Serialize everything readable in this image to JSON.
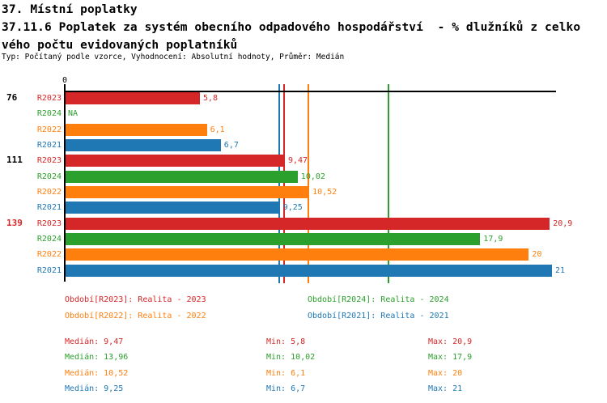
{
  "header": {
    "title_line1": "37. Místní poplatky",
    "title_line2": "37.11.6 Poplatek za systém obecního odpadového hospodářství  - % dlužníků z celko",
    "title_line3": "vého počtu evidovaných poplatníků",
    "meta_line": "Typ: Počítaný podle vzorce, Vyhodnocení: Absolutní hodnoty, Průměr: Medián"
  },
  "chart_data": {
    "type": "bar",
    "orientation": "horizontal",
    "title": "",
    "xlabel": "",
    "ylabel": "",
    "xlim": [
      0,
      21.2
    ],
    "grid": false,
    "axis_tick_labels": [
      "0"
    ],
    "series": [
      {
        "id": "R2023",
        "name": "Realita - 2023",
        "color": "#d62728"
      },
      {
        "id": "R2024",
        "name": "Realita - 2024",
        "color": "#2ca02c"
      },
      {
        "id": "R2022",
        "name": "Realita - 2022",
        "color": "#ff7f0e"
      },
      {
        "id": "R2021",
        "name": "Realita - 2021",
        "color": "#1f77b4"
      }
    ],
    "groups": [
      {
        "label": "76",
        "label_color": "#000000",
        "rows": [
          {
            "series": "R2023",
            "value": 5.8,
            "display": "5,8"
          },
          {
            "series": "R2024",
            "value": null,
            "display": "NA"
          },
          {
            "series": "R2022",
            "value": 6.1,
            "display": "6,1"
          },
          {
            "series": "R2021",
            "value": 6.7,
            "display": "6,7"
          }
        ]
      },
      {
        "label": "111",
        "label_color": "#000000",
        "rows": [
          {
            "series": "R2023",
            "value": 9.47,
            "display": "9,47"
          },
          {
            "series": "R2024",
            "value": 10.02,
            "display": "10,02"
          },
          {
            "series": "R2022",
            "value": 10.52,
            "display": "10,52"
          },
          {
            "series": "R2021",
            "value": 9.25,
            "display": "9,25"
          }
        ]
      },
      {
        "label": "139",
        "label_color": "#d62728",
        "rows": [
          {
            "series": "R2023",
            "value": 20.9,
            "display": "20,9"
          },
          {
            "series": "R2024",
            "value": 17.9,
            "display": "17,9"
          },
          {
            "series": "R2022",
            "value": 20,
            "display": "20"
          },
          {
            "series": "R2021",
            "value": 21,
            "display": "21"
          }
        ]
      }
    ],
    "median_lines": [
      {
        "series": "R2021",
        "value": 9.25
      },
      {
        "series": "R2023",
        "value": 9.47
      },
      {
        "series": "R2022",
        "value": 10.52
      },
      {
        "series": "R2024",
        "value": 13.96
      }
    ]
  },
  "legend": {
    "items": [
      {
        "series": "R2023",
        "text": "Období[R2023]: Realita - 2023"
      },
      {
        "series": "R2024",
        "text": "Období[R2024]: Realita - 2024"
      },
      {
        "series": "R2022",
        "text": "Období[R2022]: Realita - 2022"
      },
      {
        "series": "R2021",
        "text": "Období[R2021]: Realita - 2021"
      }
    ]
  },
  "stats": {
    "rows": [
      {
        "series": "R2023",
        "median": "Medián: 9,47",
        "min": "Min: 5,8",
        "max": "Max: 20,9"
      },
      {
        "series": "R2024",
        "median": "Medián: 13,96",
        "min": "Min: 10,02",
        "max": "Max: 17,9"
      },
      {
        "series": "R2022",
        "median": "Medián: 10,52",
        "min": "Min: 6,1",
        "max": "Max: 20"
      },
      {
        "series": "R2021",
        "median": "Medián: 9,25",
        "min": "Min: 6,7",
        "max": "Max: 21"
      }
    ]
  }
}
